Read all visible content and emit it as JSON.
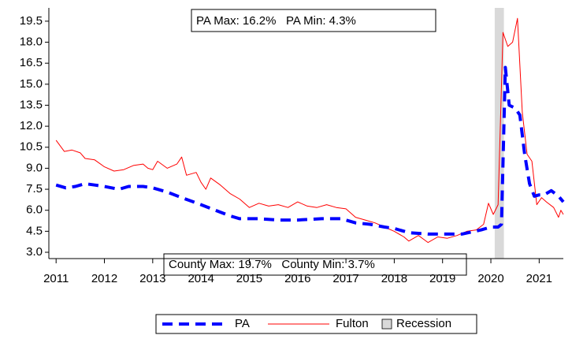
{
  "chart_data": {
    "type": "line",
    "xlim": [
      2010.85,
      2021.5
    ],
    "ylim": [
      2.55,
      20.45
    ],
    "xticks": [
      2011,
      2012,
      2013,
      2014,
      2015,
      2016,
      2017,
      2018,
      2019,
      2020,
      2021
    ],
    "yticks": [
      {
        "value": 3,
        "label": "3.0"
      },
      4.5,
      {
        "value": 6,
        "label": "6.0"
      },
      7.5,
      {
        "value": 9,
        "label": "9.0"
      },
      10.5,
      {
        "value": 12,
        "label": "12.0"
      },
      13.5,
      {
        "value": 15,
        "label": "15.0"
      },
      16.5,
      {
        "value": 18,
        "label": "18.0"
      },
      19.5
    ],
    "series": [
      {
        "name": "PA",
        "color": "#0000ff",
        "dashed": true,
        "x": [
          2011.0,
          2011.2,
          2011.4,
          2011.6,
          2011.8,
          2012.0,
          2012.3,
          2012.5,
          2012.8,
          2013.0,
          2013.3,
          2013.6,
          2014.0,
          2014.3,
          2014.6,
          2014.8,
          2015.2,
          2015.6,
          2016.0,
          2016.5,
          2016.9,
          2017.2,
          2017.5,
          2017.8,
          2018.0,
          2018.3,
          2018.7,
          2019.0,
          2019.4,
          2019.8,
          2020.0,
          2020.15,
          2020.22,
          2020.3,
          2020.38,
          2020.5,
          2020.6,
          2020.7,
          2020.8,
          2020.9,
          2021.0,
          2021.1,
          2021.25,
          2021.4,
          2021.5
        ],
        "values": [
          7.8,
          7.6,
          7.7,
          7.9,
          7.8,
          7.7,
          7.5,
          7.7,
          7.7,
          7.6,
          7.3,
          6.9,
          6.4,
          6.0,
          5.6,
          5.4,
          5.4,
          5.3,
          5.3,
          5.4,
          5.4,
          5.1,
          5.0,
          4.8,
          4.7,
          4.4,
          4.3,
          4.3,
          4.3,
          4.6,
          4.8,
          4.8,
          5.0,
          16.2,
          13.5,
          13.3,
          12.8,
          10.0,
          7.9,
          7.0,
          7.1,
          7.1,
          7.4,
          7.0,
          6.6
        ]
      },
      {
        "name": "Fulton",
        "color": "#ff0000",
        "dashed": false,
        "x": [
          2011.0,
          2011.17,
          2011.33,
          2011.5,
          2011.6,
          2011.8,
          2012.0,
          2012.2,
          2012.4,
          2012.6,
          2012.8,
          2012.9,
          2013.0,
          2013.1,
          2013.3,
          2013.5,
          2013.6,
          2013.7,
          2013.9,
          2014.0,
          2014.1,
          2014.2,
          2014.4,
          2014.6,
          2014.8,
          2015.0,
          2015.2,
          2015.4,
          2015.6,
          2015.8,
          2016.0,
          2016.2,
          2016.4,
          2016.6,
          2016.8,
          2017.0,
          2017.2,
          2017.4,
          2017.6,
          2017.8,
          2018.0,
          2018.2,
          2018.3,
          2018.5,
          2018.7,
          2018.9,
          2019.1,
          2019.3,
          2019.5,
          2019.7,
          2019.85,
          2019.95,
          2020.05,
          2020.15,
          2020.25,
          2020.35,
          2020.45,
          2020.55,
          2020.65,
          2020.75,
          2020.85,
          2020.95,
          2021.05,
          2021.15,
          2021.3,
          2021.4,
          2021.45,
          2021.5
        ],
        "values": [
          11.0,
          10.2,
          10.3,
          10.1,
          9.7,
          9.6,
          9.1,
          8.8,
          8.9,
          9.2,
          9.3,
          9.0,
          8.9,
          9.5,
          9.0,
          9.3,
          9.8,
          8.5,
          8.7,
          8.0,
          7.5,
          8.3,
          7.8,
          7.2,
          6.8,
          6.2,
          6.5,
          6.3,
          6.4,
          6.2,
          6.6,
          6.3,
          6.2,
          6.4,
          6.2,
          6.1,
          5.5,
          5.3,
          5.1,
          4.8,
          4.5,
          4.1,
          3.8,
          4.2,
          3.7,
          4.1,
          4.0,
          4.2,
          4.5,
          4.6,
          5.0,
          6.5,
          5.7,
          6.4,
          18.7,
          17.7,
          18.0,
          19.7,
          13.0,
          10.0,
          9.5,
          6.4,
          6.9,
          6.6,
          6.2,
          5.5,
          6.0,
          5.7
        ]
      }
    ],
    "recession": {
      "name": "Recession",
      "color": "#d9d9d9",
      "start": 2020.08,
      "end": 2020.27
    },
    "annotations": [
      "PA Max: 16.2%   PA Min: 4.3%",
      "County Max: 19.7%   County Min: 3.7%"
    ]
  }
}
